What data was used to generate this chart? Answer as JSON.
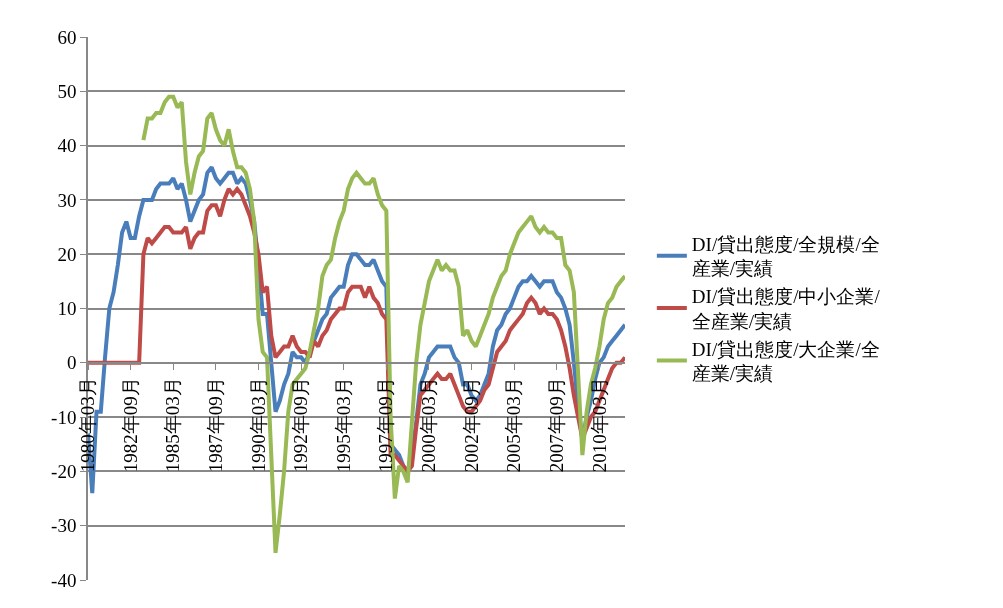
{
  "chart_data": {
    "type": "line",
    "categories": [
      "1980年03月",
      null,
      null,
      null,
      null,
      null,
      null,
      null,
      null,
      null,
      "1982年09月",
      null,
      null,
      null,
      null,
      null,
      null,
      null,
      null,
      null,
      "1985年03月",
      null,
      null,
      null,
      null,
      null,
      null,
      null,
      null,
      null,
      "1987年09月",
      null,
      null,
      null,
      null,
      null,
      null,
      null,
      null,
      null,
      "1990年03月",
      null,
      null,
      null,
      null,
      null,
      null,
      null,
      null,
      null,
      "1992年09月",
      null,
      null,
      null,
      null,
      null,
      null,
      null,
      null,
      null,
      "1995年03月",
      null,
      null,
      null,
      null,
      null,
      null,
      null,
      null,
      null,
      "1997年09月",
      null,
      null,
      null,
      null,
      null,
      null,
      null,
      null,
      null,
      "2000年03月",
      null,
      null,
      null,
      null,
      null,
      null,
      null,
      null,
      null,
      "2002年09月",
      null,
      null,
      null,
      null,
      null,
      null,
      null,
      null,
      null,
      "2005年03月",
      null,
      null,
      null,
      null,
      null,
      null,
      null,
      null,
      null,
      "2007年09月",
      null,
      null,
      null,
      null,
      null,
      null,
      null,
      null,
      null,
      "2010年03月",
      null,
      null,
      null,
      null,
      null,
      null
    ],
    "series": [
      {
        "name": "DI/貸出態度/全規模/全産業/実績",
        "color": "#4a7ebb",
        "values": [
          -13,
          -24,
          -9,
          -9,
          1,
          10,
          13,
          18,
          24,
          26,
          23,
          23,
          27,
          30,
          30,
          30,
          32,
          33,
          33,
          33,
          34,
          32,
          33,
          30,
          26,
          28,
          30,
          31,
          35,
          36,
          34,
          33,
          34,
          35,
          35,
          33,
          34,
          33,
          30,
          26,
          18,
          9,
          9,
          0,
          -9,
          -7,
          -4,
          -2,
          2,
          1,
          1,
          0,
          2,
          4,
          6,
          8,
          9,
          12,
          13,
          14,
          14,
          18,
          20,
          20,
          19,
          18,
          18,
          19,
          17,
          15,
          14,
          -15,
          -16,
          -17,
          -19,
          -20,
          -17,
          -11,
          -4,
          -2,
          1,
          2,
          3,
          3,
          3,
          3,
          1,
          0,
          -4,
          -4,
          -6,
          -7,
          -6,
          -4,
          -2,
          3,
          6,
          7,
          9,
          10,
          12,
          14,
          15,
          15,
          16,
          15,
          14,
          15,
          15,
          15,
          13,
          12,
          10,
          7,
          0,
          -8,
          -14,
          -10,
          -7,
          -3,
          0,
          1,
          3,
          4,
          5,
          6,
          7
        ]
      },
      {
        "name": "DI/貸出態度/中小企業/全産業/実績",
        "color": "#be4b48",
        "values": [
          0,
          0,
          0,
          0,
          0,
          0,
          0,
          0,
          0,
          0,
          0,
          0,
          0,
          20,
          23,
          22,
          23,
          24,
          25,
          25,
          24,
          24,
          24,
          25,
          21,
          23,
          24,
          24,
          28,
          29,
          29,
          27,
          30,
          32,
          31,
          32,
          31,
          29,
          27,
          24,
          20,
          13,
          14,
          5,
          1,
          2,
          3,
          3,
          5,
          3,
          2,
          2,
          1,
          4,
          3,
          5,
          6,
          8,
          9,
          10,
          10,
          13,
          14,
          14,
          14,
          12,
          14,
          12,
          11,
          9,
          8,
          -17,
          -17,
          -18,
          -19,
          -20,
          -19,
          -12,
          -6,
          -5,
          -4,
          -3,
          -2,
          -3,
          -3,
          -2,
          -4,
          -6,
          -8,
          -9,
          -9,
          -8,
          -7,
          -5,
          -4,
          -1,
          2,
          3,
          4,
          6,
          7,
          8,
          9,
          11,
          12,
          11,
          9,
          10,
          9,
          9,
          8,
          6,
          3,
          -1,
          -6,
          -10,
          -14,
          -12,
          -10,
          -9,
          -7,
          -5,
          -3,
          -1,
          0,
          0,
          1
        ]
      },
      {
        "name": "DI/貸出態度/大企業/全産業/実績",
        "color": "#98b954",
        "values": [
          null,
          null,
          null,
          null,
          null,
          null,
          null,
          null,
          null,
          null,
          null,
          null,
          null,
          41,
          45,
          45,
          46,
          46,
          48,
          49,
          49,
          47,
          48,
          37,
          31,
          35,
          38,
          39,
          45,
          46,
          43,
          41,
          40,
          43,
          39,
          36,
          36,
          35,
          32,
          26,
          8,
          2,
          1,
          -17,
          -35,
          -28,
          -20,
          -9,
          -4,
          -3,
          -2,
          -1,
          2,
          6,
          10,
          16,
          18,
          19,
          23,
          26,
          28,
          32,
          34,
          35,
          34,
          33,
          33,
          34,
          31,
          29,
          28,
          -10,
          -25,
          -19,
          -20,
          -22,
          -11,
          0,
          7,
          11,
          15,
          17,
          19,
          17,
          18,
          17,
          17,
          14,
          5,
          6,
          4,
          3,
          5,
          7,
          9,
          12,
          14,
          16,
          17,
          20,
          22,
          24,
          25,
          26,
          27,
          25,
          24,
          25,
          24,
          24,
          23,
          23,
          18,
          17,
          13,
          -2,
          -17,
          -9,
          -4,
          -1,
          3,
          8,
          11,
          12,
          14,
          15,
          16
        ]
      }
    ],
    "ylim": [
      -40,
      60
    ],
    "yticks": [
      -40,
      -30,
      -20,
      -10,
      0,
      10,
      20,
      30,
      40,
      50,
      60
    ],
    "grid": "y",
    "legend": "right",
    "marker": "none",
    "line_style": "solid"
  }
}
